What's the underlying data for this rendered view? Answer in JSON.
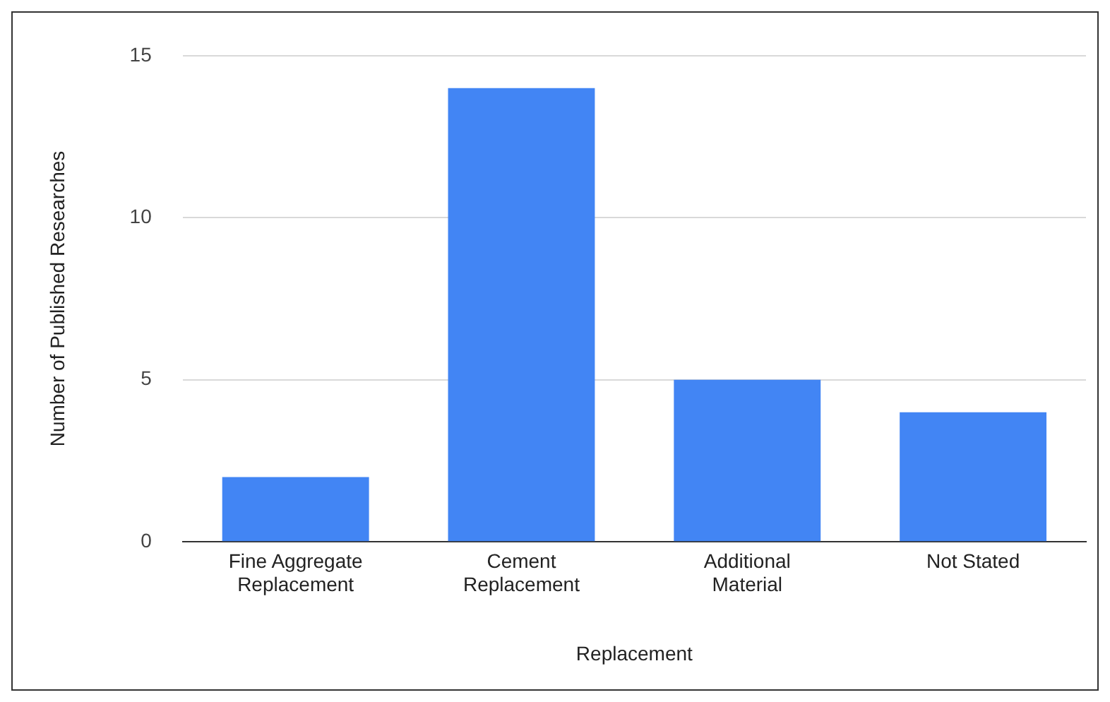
{
  "chart_data": {
    "type": "bar",
    "xlabel": "Replacement",
    "ylabel": "Number of Published Researches",
    "categories": [
      "Fine Aggregate Replacement",
      "Cement Replacement",
      "Additional Material",
      "Not Stated"
    ],
    "values": [
      2,
      14,
      5,
      4
    ],
    "color": "#4285f4",
    "ylim": [
      0,
      15
    ],
    "yticks": [
      0,
      5,
      10,
      15
    ],
    "grid": "y",
    "legend": false
  }
}
